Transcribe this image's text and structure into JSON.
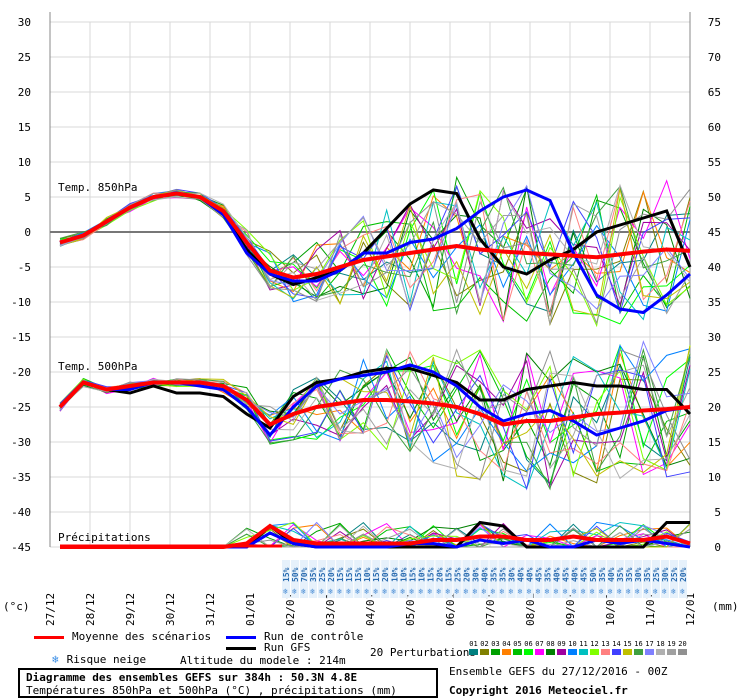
{
  "chart_data": {
    "type": "line",
    "title": "Diagramme des ensembles GEFS sur 384h : 50.3N 4.8E",
    "subtitle": "Températures 850hPa et 500hPa (°C) , précipitations (mm)",
    "left_axis": {
      "unit": "(°c)",
      "ylim": [
        -45,
        30
      ],
      "ticks": [
        30,
        25,
        20,
        15,
        10,
        5,
        0,
        -5,
        -10,
        -15,
        -20,
        -25,
        -30,
        -35,
        -40,
        -45
      ]
    },
    "right_axis": {
      "unit": "(mm)",
      "ticks": [
        75,
        70,
        65,
        60,
        55,
        50,
        45,
        40,
        35,
        30,
        25,
        20,
        15,
        10,
        5,
        0
      ]
    },
    "x_labels": [
      "27/12",
      "28/12",
      "29/12",
      "30/12",
      "31/12",
      "01/01",
      "02/01",
      "03/01",
      "04/01",
      "05/01",
      "06/01",
      "07/01",
      "08/01",
      "09/01",
      "10/01",
      "11/01",
      "12/01"
    ],
    "panel_labels": {
      "t850": "Temp. 850hPa",
      "t500": "Temp. 500hPa",
      "precip": "Précipitations"
    },
    "snow_risk_pct": [
      "15%",
      "50%",
      "70%",
      "35%",
      "25%",
      "20%",
      "15%",
      "15%",
      "15%",
      "10%",
      "15%",
      "20%",
      "10%",
      "10%",
      "15%",
      "10%",
      "15%",
      "20%",
      "15%",
      "25%",
      "20%",
      "30%",
      "40%",
      "35%",
      "35%",
      "30%",
      "40%",
      "40%",
      "45%",
      "35%",
      "40%",
      "45%",
      "40%",
      "45%",
      "50%",
      "35%",
      "40%",
      "35%",
      "35%",
      "30%",
      "35%",
      "25%",
      "30%",
      "25%",
      "20%"
    ],
    "series": [
      {
        "name": "Moyenne des scénarios",
        "color": "#ff0000",
        "t850": [
          -1.5,
          -0.5,
          1.5,
          3.5,
          5,
          5.5,
          5,
          3,
          -1.5,
          -5.5,
          -6.5,
          -6,
          -5,
          -4,
          -3.5,
          -3,
          -2.5,
          -2,
          -2.5,
          -2.8,
          -3,
          -3.2,
          -3.4,
          -3.6,
          -3.2,
          -2.8,
          -2.5,
          -2.7
        ],
        "t500": [
          -25,
          -21.5,
          -22.5,
          -22,
          -21.5,
          -21.5,
          -21.5,
          -22,
          -24,
          -27.5,
          -26,
          -25,
          -24.5,
          -24,
          -24,
          -24.2,
          -24.5,
          -25,
          -26,
          -27.5,
          -27,
          -27,
          -26.5,
          -26,
          -25.8,
          -25.5,
          -25.3,
          -25
        ],
        "precip": [
          0,
          0,
          0,
          0,
          0,
          0,
          0,
          0,
          0.5,
          3,
          1,
          0.5,
          0.5,
          0.5,
          0.5,
          0.5,
          1,
          1,
          1.5,
          1.5,
          1,
          1,
          1.5,
          1,
          1,
          1,
          1.5,
          0.5
        ]
      },
      {
        "name": "Run de contrôle",
        "color": "#0000ff",
        "t850": [
          -1.5,
          -0.5,
          1.5,
          3.5,
          5,
          5.5,
          5,
          2.5,
          -3,
          -6,
          -7,
          -7,
          -5.5,
          -3,
          -3,
          -1.5,
          -1,
          0.5,
          3,
          5,
          6,
          4.5,
          -3,
          -9,
          -11,
          -11.5,
          -9,
          -6
        ],
        "t500": [
          -25,
          -21.5,
          -22.5,
          -22.5,
          -21.5,
          -21.5,
          -22,
          -22.5,
          -25,
          -29,
          -25,
          -22,
          -21,
          -20.5,
          -20,
          -19,
          -20,
          -22,
          -25,
          -27,
          -26,
          -25.5,
          -27,
          -29,
          -28,
          -27,
          -25.5,
          -25
        ],
        "precip": [
          0,
          0,
          0,
          0,
          0,
          0,
          0,
          0,
          0,
          2,
          0.5,
          0,
          0,
          0,
          0,
          0.5,
          0.5,
          0,
          1,
          0.5,
          1,
          0,
          0,
          1,
          0.5,
          1,
          0.5,
          0
        ]
      },
      {
        "name": "Run GFS",
        "color": "#000000",
        "t850": [
          -1.5,
          -0.5,
          1.5,
          3.5,
          5,
          5.5,
          5,
          2.5,
          -2.5,
          -6,
          -7.5,
          -6.5,
          -5.5,
          -3,
          0.5,
          4,
          6,
          5.5,
          -1,
          -5,
          -6,
          -4,
          -2.5,
          0,
          1,
          2,
          3,
          -5
        ],
        "t500": [
          -25,
          -21.5,
          -22.5,
          -23,
          -22,
          -23,
          -23,
          -23.5,
          -26,
          -28,
          -23.5,
          -21.5,
          -21,
          -20,
          -19.5,
          -19.5,
          -20.5,
          -21.5,
          -24,
          -24,
          -22.5,
          -22,
          -21.5,
          -22,
          -22,
          -22.5,
          -22.5,
          -26
        ],
        "precip": [
          0,
          0,
          0,
          0,
          0,
          0,
          0,
          0,
          0,
          3,
          0.5,
          0,
          0,
          0,
          0,
          0,
          0,
          0,
          3.5,
          3,
          0,
          0,
          0,
          0,
          0,
          0,
          3.5,
          3.5
        ]
      }
    ],
    "grid": true
  },
  "legend": {
    "mean_label": "Moyenne des scénarios",
    "control_label": "Run de contrôle",
    "gfs_label": "Run GFS",
    "snow_label": "Risque neige",
    "altitude_label": "Altitude du modele : 214m",
    "perturb_label": "20 Perturbations",
    "perturb_ids": [
      "01",
      "02",
      "03",
      "04",
      "05",
      "06",
      "07",
      "08",
      "09",
      "10",
      "11",
      "12",
      "13",
      "14",
      "15",
      "16",
      "17",
      "18",
      "19",
      "20"
    ],
    "perturb_colors": [
      "#008080",
      "#808000",
      "#00a000",
      "#ff8000",
      "#00c000",
      "#00ff00",
      "#ff00ff",
      "#008000",
      "#a000a0",
      "#0080ff",
      "#00c0c0",
      "#80ff00",
      "#ff8080",
      "#4040ff",
      "#c0c000",
      "#40a040",
      "#8080ff",
      "#b0b0b0",
      "#a0a0a0",
      "#909090"
    ],
    "ensemble_label": "Ensemble GEFS du 27/12/2016 - 00Z",
    "copyright": "Copyright 2016 Meteociel.fr"
  }
}
